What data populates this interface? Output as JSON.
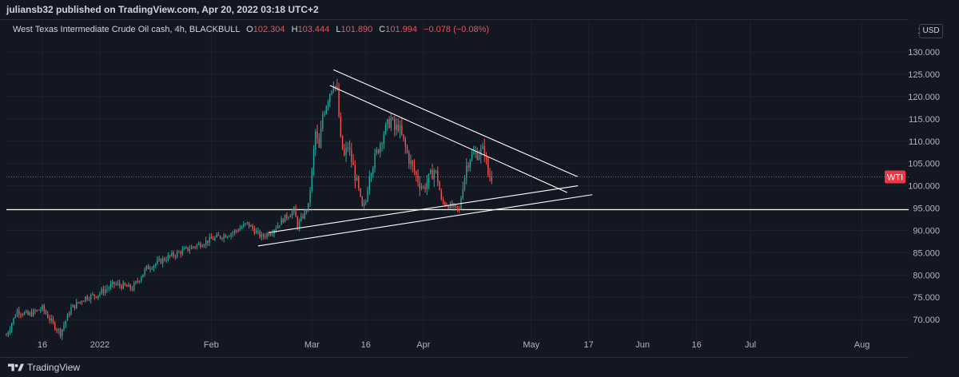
{
  "header": {
    "publisher": "juliansb32 published on TradingView.com, Apr 20, 2022 03:18 UTC+2"
  },
  "legend": {
    "symbol": "West Texas Intermediate Crude Oil cash, 4h, BLACKBULL",
    "open_label": "O",
    "open": "102.304",
    "high_label": "H",
    "high": "103.444",
    "low_label": "L",
    "low": "101.890",
    "close_label": "C",
    "close": "101.994",
    "change": "−0.078 (−0.08%)"
  },
  "currency": "USD",
  "footer": {
    "brand": "TradingView"
  },
  "colors": {
    "background": "#131722",
    "up": "#26a69a",
    "down": "#ef5350",
    "price_line": "#f23645",
    "drawing": "#ffffff",
    "text": "#b2b5be"
  },
  "chart_data": {
    "type": "candlestick",
    "symbol": "WTI",
    "last_price": "101.994",
    "last_price_label": "WTI",
    "horizontal_level": "94.647",
    "ylim": [
      65,
      137
    ],
    "y_ticks": [
      "70.000",
      "75.000",
      "80.000",
      "85.000",
      "90.000",
      "95.000",
      "100.000",
      "105.000",
      "110.000",
      "115.000",
      "120.000",
      "125.000",
      "130.000"
    ],
    "y_top_partial_label": "1",
    "x_range": [
      "2021-12-06",
      "2022-08-14"
    ],
    "x_ticks": [
      {
        "date": "2021-12-16",
        "label": "16"
      },
      {
        "date": "2022-01-01",
        "label": "2022"
      },
      {
        "date": "2022-02-01",
        "label": "Feb"
      },
      {
        "date": "2022-03-01",
        "label": "Mar"
      },
      {
        "date": "2022-03-16",
        "label": "16"
      },
      {
        "date": "2022-04-01",
        "label": "Apr"
      },
      {
        "date": "2022-05-01",
        "label": "May"
      },
      {
        "date": "2022-05-17",
        "label": "17"
      },
      {
        "date": "2022-06-01",
        "label": "Jun"
      },
      {
        "date": "2022-06-16",
        "label": "16"
      },
      {
        "date": "2022-07-01",
        "label": "Jul"
      },
      {
        "date": "2022-08-01",
        "label": "Aug"
      }
    ],
    "price_path": [
      [
        "2021-12-06",
        66.5
      ],
      [
        "2021-12-09",
        72.0
      ],
      [
        "2021-12-12",
        71.0
      ],
      [
        "2021-12-16",
        72.5
      ],
      [
        "2021-12-19",
        69.0
      ],
      [
        "2021-12-21",
        67.0
      ],
      [
        "2021-12-24",
        72.5
      ],
      [
        "2021-12-28",
        75.0
      ],
      [
        "2021-12-31",
        75.5
      ],
      [
        "2022-01-05",
        78.0
      ],
      [
        "2022-01-10",
        77.0
      ],
      [
        "2022-01-14",
        81.5
      ],
      [
        "2022-01-20",
        84.0
      ],
      [
        "2022-01-26",
        86.0
      ],
      [
        "2022-02-01",
        88.0
      ],
      [
        "2022-02-07",
        89.5
      ],
      [
        "2022-02-11",
        91.5
      ],
      [
        "2022-02-15",
        88.5
      ],
      [
        "2022-02-18",
        90.0
      ],
      [
        "2022-02-21",
        92.5
      ],
      [
        "2022-02-24",
        94.5
      ],
      [
        "2022-02-25",
        91.0
      ],
      [
        "2022-02-28",
        95.5
      ],
      [
        "2022-03-01",
        103.0
      ],
      [
        "2022-03-02",
        112.0
      ],
      [
        "2022-03-03",
        108.0
      ],
      [
        "2022-03-04",
        116.0
      ],
      [
        "2022-03-07",
        123.5
      ],
      [
        "2022-03-08",
        121.0
      ],
      [
        "2022-03-09",
        110.0
      ],
      [
        "2022-03-10",
        106.5
      ],
      [
        "2022-03-11",
        109.0
      ],
      [
        "2022-03-14",
        99.0
      ],
      [
        "2022-03-15",
        95.0
      ],
      [
        "2022-03-16",
        96.5
      ],
      [
        "2022-03-17",
        103.0
      ],
      [
        "2022-03-18",
        105.0
      ],
      [
        "2022-03-21",
        112.0
      ],
      [
        "2022-03-23",
        115.0
      ],
      [
        "2022-03-24",
        112.5
      ],
      [
        "2022-03-25",
        113.5
      ],
      [
        "2022-03-28",
        106.0
      ],
      [
        "2022-03-29",
        104.0
      ],
      [
        "2022-03-31",
        100.5
      ],
      [
        "2022-04-01",
        99.5
      ],
      [
        "2022-04-04",
        103.5
      ],
      [
        "2022-04-05",
        101.5
      ],
      [
        "2022-04-06",
        96.5
      ],
      [
        "2022-04-07",
        96.0
      ],
      [
        "2022-04-11",
        94.5
      ],
      [
        "2022-04-12",
        100.5
      ],
      [
        "2022-04-13",
        104.5
      ],
      [
        "2022-04-14",
        106.5
      ],
      [
        "2022-04-18",
        108.0
      ],
      [
        "2022-04-19",
        102.5
      ],
      [
        "2022-04-20",
        101.994
      ]
    ],
    "trendlines": [
      {
        "from": [
          "2022-03-07",
          126.0
        ],
        "to": [
          "2022-05-14",
          102.0
        ]
      },
      {
        "from": [
          "2022-03-06",
          122.5
        ],
        "to": [
          "2022-05-11",
          98.5
        ]
      },
      {
        "from": [
          "2022-02-17",
          89.5
        ],
        "to": [
          "2022-05-14",
          100.0
        ]
      },
      {
        "from": [
          "2022-02-14",
          86.5
        ],
        "to": [
          "2022-05-18",
          98.0
        ]
      }
    ]
  }
}
